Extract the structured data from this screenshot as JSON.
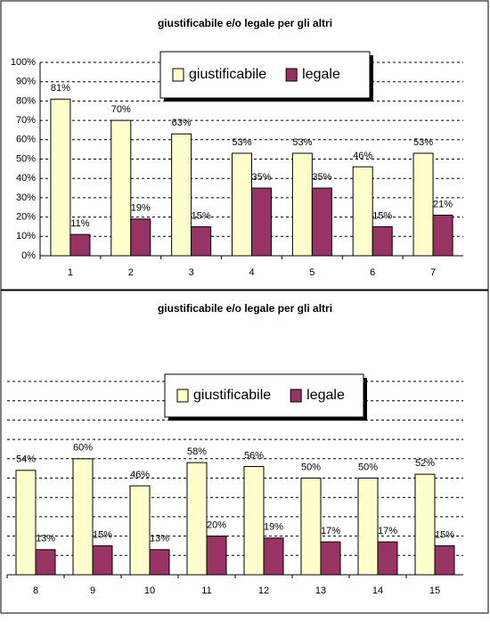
{
  "chart_data": [
    {
      "type": "bar",
      "title": "giustificabile e/o legale per gli altri",
      "categories": [
        "1",
        "2",
        "3",
        "4",
        "5",
        "6",
        "7"
      ],
      "series": [
        {
          "name": "giustificabile",
          "color": "#ffffcc",
          "values": [
            81,
            70,
            63,
            53,
            53,
            46,
            53
          ],
          "value_labels": [
            "81%",
            "70%",
            "63%",
            "53%",
            "53%",
            "46%",
            "53%"
          ]
        },
        {
          "name": "legale",
          "color": "#993366",
          "values": [
            11,
            19,
            15,
            35,
            35,
            15,
            21
          ],
          "value_labels": [
            "11%",
            "19%",
            "15%",
            "35%",
            "35%",
            "15%",
            "21%"
          ]
        }
      ],
      "ylim": [
        0,
        100
      ],
      "yticks": [
        {
          "value": 0,
          "label": "0%"
        },
        {
          "value": 10,
          "label": "10%"
        },
        {
          "value": 20,
          "label": "20%"
        },
        {
          "value": 30,
          "label": "30%"
        },
        {
          "value": 40,
          "label": "40%"
        },
        {
          "value": 50,
          "label": "50%"
        },
        {
          "value": 60,
          "label": "60%"
        },
        {
          "value": 70,
          "label": "70%"
        },
        {
          "value": 80,
          "label": "80%"
        },
        {
          "value": 90,
          "label": "90%"
        },
        {
          "value": 100,
          "label": "100%"
        }
      ],
      "show_tick_labels": true,
      "grid": true,
      "legend": "top"
    },
    {
      "type": "bar",
      "title": "giustificabile e/o legale per gli altri",
      "categories": [
        "8",
        "9",
        "10",
        "11",
        "12",
        "13",
        "14",
        "15"
      ],
      "series": [
        {
          "name": "giustificabile",
          "color": "#ffffcc",
          "values": [
            54,
            60,
            46,
            58,
            56,
            50,
            50,
            52
          ],
          "value_labels": [
            "54%",
            "60%",
            "46%",
            "58%",
            "56%",
            "50%",
            "50%",
            "52%"
          ]
        },
        {
          "name": "legale",
          "color": "#993366",
          "values": [
            13,
            15,
            13,
            20,
            19,
            17,
            17,
            15
          ],
          "value_labels": [
            "13%",
            "15%",
            "13%",
            "20%",
            "19%",
            "17%",
            "17%",
            "15%"
          ]
        }
      ],
      "ylim": [
        0,
        100
      ],
      "yticks": [
        0,
        10,
        20,
        30,
        40,
        50,
        60,
        70,
        80,
        90,
        100
      ],
      "show_tick_labels": false,
      "grid": true,
      "legend": "top"
    }
  ]
}
